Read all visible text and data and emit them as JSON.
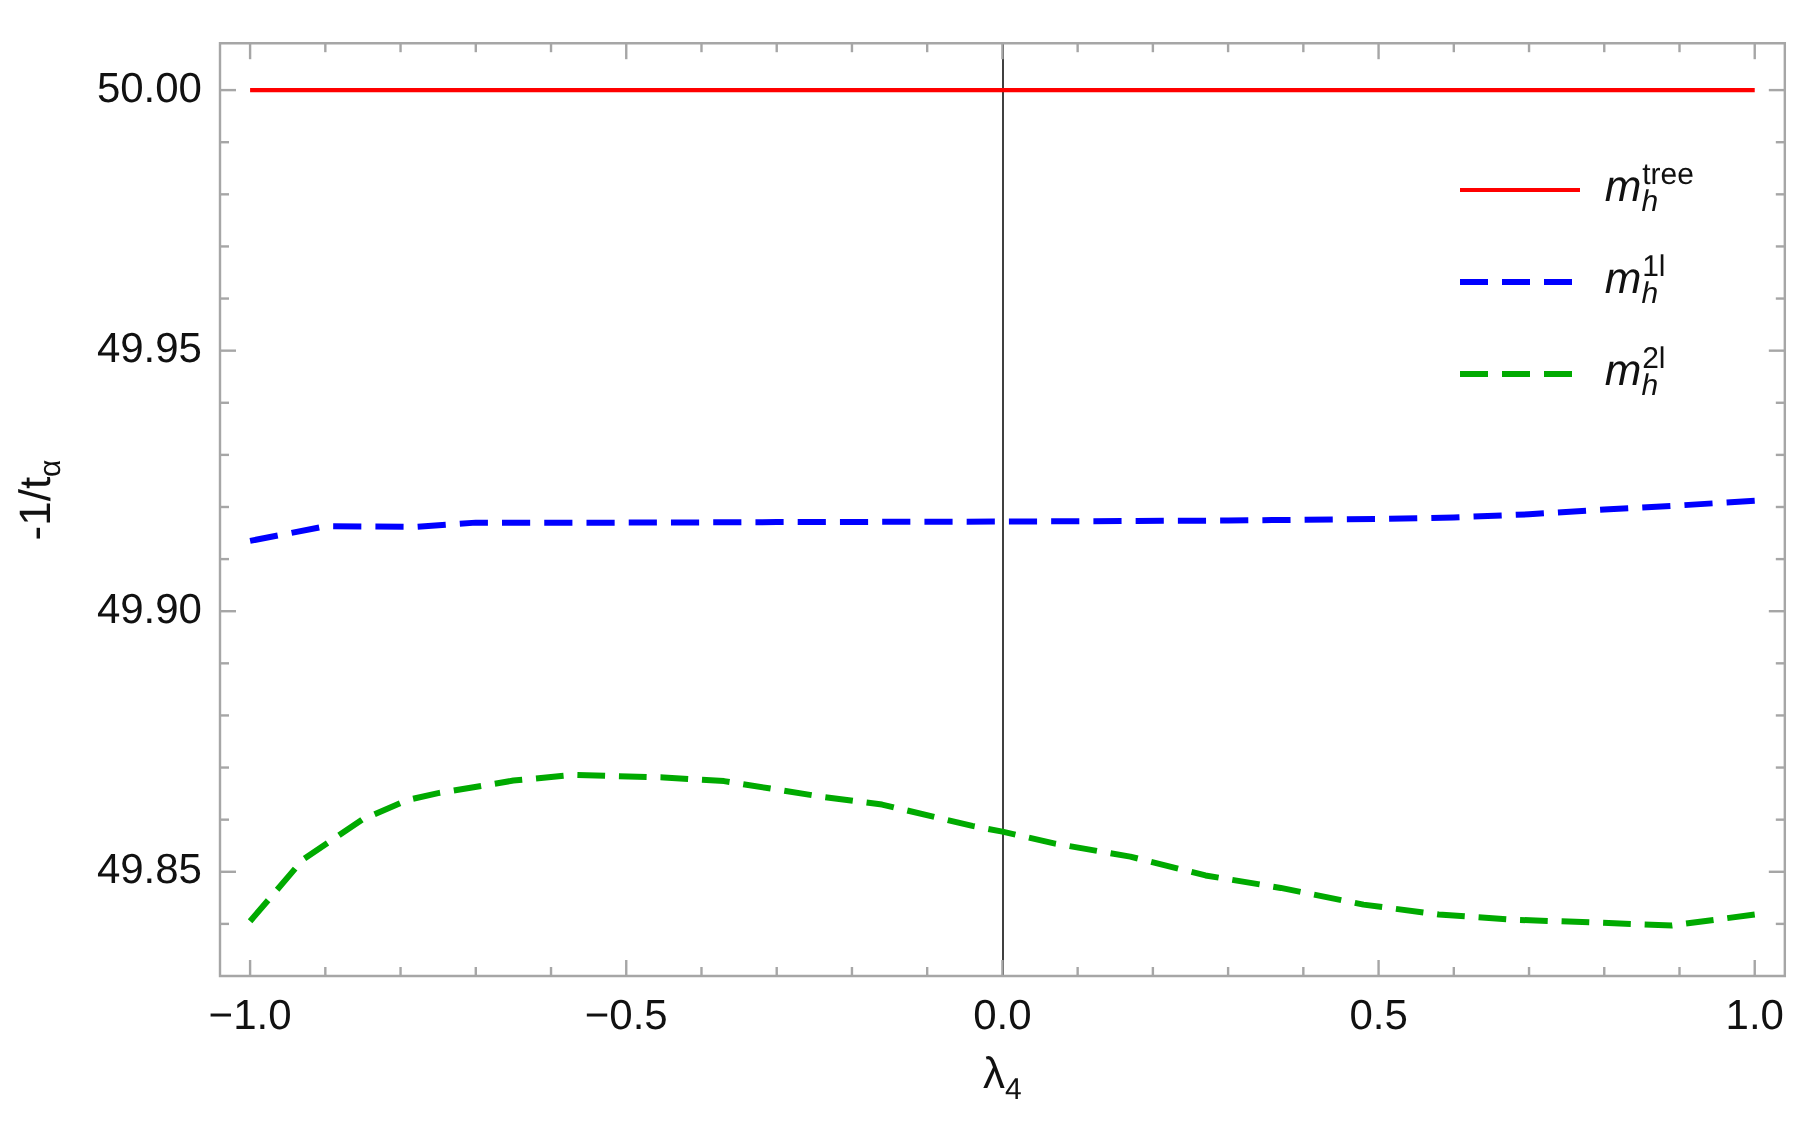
{
  "chart_data": {
    "type": "line",
    "xlabel": "λ$_{4}$",
    "ylabel": "-1/t$_{α}$",
    "xlim": [
      -1.04,
      1.04
    ],
    "xticks": [
      {
        "value": -1,
        "label": "−1.0"
      },
      {
        "value": -0.9,
        "label": null
      },
      {
        "value": -0.8,
        "label": null
      },
      {
        "value": -0.7,
        "label": null
      },
      {
        "value": -0.6,
        "label": null
      },
      {
        "value": -0.5,
        "label": "−0.5"
      },
      {
        "value": -0.4,
        "label": null
      },
      {
        "value": -0.3,
        "label": null
      },
      {
        "value": -0.2,
        "label": null
      },
      {
        "value": -0.1,
        "label": null
      },
      {
        "value": 0,
        "label": "0.0"
      },
      {
        "value": 0.1,
        "label": null
      },
      {
        "value": 0.2,
        "label": null
      },
      {
        "value": 0.3,
        "label": null
      },
      {
        "value": 0.4,
        "label": null
      },
      {
        "value": 0.5,
        "label": "0.5"
      },
      {
        "value": 0.6,
        "label": null
      },
      {
        "value": 0.7,
        "label": null
      },
      {
        "value": 0.8,
        "label": null
      },
      {
        "value": 0.9,
        "label": null
      },
      {
        "value": 1,
        "label": "1.0"
      }
    ],
    "ylim": [
      49.83,
      50.009
    ],
    "yticks": [
      {
        "value": 49.84,
        "label": null
      },
      {
        "value": 49.85,
        "label": "49.85"
      },
      {
        "value": 49.86,
        "label": null
      },
      {
        "value": 49.87,
        "label": null
      },
      {
        "value": 49.88,
        "label": null
      },
      {
        "value": 49.89,
        "label": null
      },
      {
        "value": 49.9,
        "label": "49.90"
      },
      {
        "value": 49.91,
        "label": null
      },
      {
        "value": 49.92,
        "label": null
      },
      {
        "value": 49.93,
        "label": null
      },
      {
        "value": 49.94,
        "label": null
      },
      {
        "value": 49.95,
        "label": "49.95"
      },
      {
        "value": 49.96,
        "label": null
      },
      {
        "value": 49.97,
        "label": null
      },
      {
        "value": 49.98,
        "label": null
      },
      {
        "value": 49.99,
        "label": null
      },
      {
        "value": 50,
        "label": "50.00"
      }
    ],
    "legend": "top right",
    "ref_lines": [
      {
        "axis": "x",
        "value": 0,
        "color": "#404040"
      }
    ],
    "series": [
      {
        "name": "m$_{h}$$^{tree}$",
        "color": "#ff0000",
        "line_style": "solid",
        "x": [
          -1,
          1
        ],
        "values": [
          50,
          50
        ]
      },
      {
        "name": "m$_{h}$$^{1l}$",
        "color": "#0000ff",
        "line_style": "dashed",
        "x": [
          -1,
          -0.9,
          -0.78,
          -0.7,
          -0.5,
          -0.3,
          0,
          0.3,
          0.5,
          0.6,
          0.7,
          0.8,
          0.9,
          1
        ],
        "values": [
          49.9135,
          49.9163,
          49.9162,
          49.917,
          49.917,
          49.9171,
          49.9172,
          49.9174,
          49.9177,
          49.918,
          49.9186,
          49.9195,
          49.9203,
          49.9212
        ]
      },
      {
        "name": "m$_{h}$$^{2l}$",
        "color": "#00aa00",
        "line_style": "dashed",
        "x": [
          -1,
          -0.93,
          -0.85,
          -0.79,
          -0.75,
          -0.65,
          -0.57,
          -0.45,
          -0.37,
          -0.24,
          -0.16,
          -0.04,
          0,
          0.07,
          0.17,
          0.27,
          0.37,
          0.48,
          0.58,
          0.68,
          0.78,
          0.89,
          1
        ],
        "values": [
          49.8405,
          49.8523,
          49.8601,
          49.8638,
          49.8651,
          49.8675,
          49.8686,
          49.8681,
          49.8674,
          49.8644,
          49.8629,
          49.8588,
          49.8577,
          49.8554,
          49.8529,
          49.8493,
          49.8469,
          49.8437,
          49.8418,
          49.8408,
          49.8403,
          49.8397,
          49.8418
        ]
      }
    ]
  }
}
